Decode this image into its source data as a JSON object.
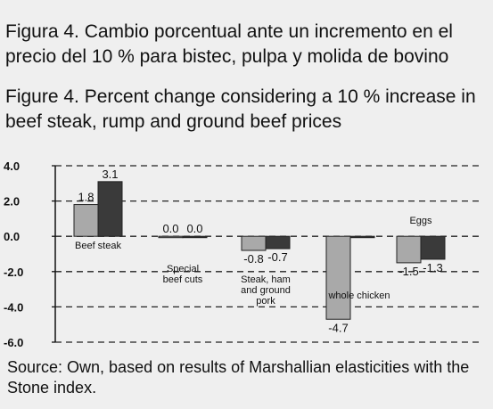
{
  "figure": {
    "title_es": "Figura 4. Cambio porcentual ante un incremento en el precio del 10 % para bistec, pulpa y molida de bovino",
    "title_en": "Figure 4. Percent change considering a 10 % increase in beef steak, rump and ground beef prices",
    "source": "Source: Own, based on results of Marshallian elasticities with the Stone index."
  },
  "chart_data": {
    "type": "bar",
    "categories": [
      "Beef steak",
      "Special beef cuts",
      "Steak, ham and ground pork",
      "whole chicken",
      "Eggs"
    ],
    "category_label_lines": [
      [
        "Beef steak"
      ],
      [
        "Special",
        "beef cuts"
      ],
      [
        "Steak, ham",
        "and ground",
        "pork"
      ],
      [
        "whole chicken"
      ],
      [
        "Eggs"
      ]
    ],
    "series": [
      {
        "values": [
          1.8,
          0.0,
          -0.8,
          -4.7,
          -1.5
        ],
        "labels": [
          "1.8",
          "0.0",
          "-0.8",
          "-4.7",
          "-1.5"
        ],
        "color": "#a9a9a9"
      },
      {
        "values": [
          3.1,
          0.0,
          -0.7,
          0.0,
          -1.3
        ],
        "labels": [
          "3.1",
          "0.0",
          "-0.7",
          "",
          "-1.3"
        ],
        "color": "#3a3a3a"
      }
    ],
    "ylim": [
      -6.0,
      4.0
    ],
    "yticks": [
      "4.0",
      "2.0",
      "0.0",
      "-2.0",
      "-4.0",
      "-6.0"
    ],
    "grid": true
  }
}
